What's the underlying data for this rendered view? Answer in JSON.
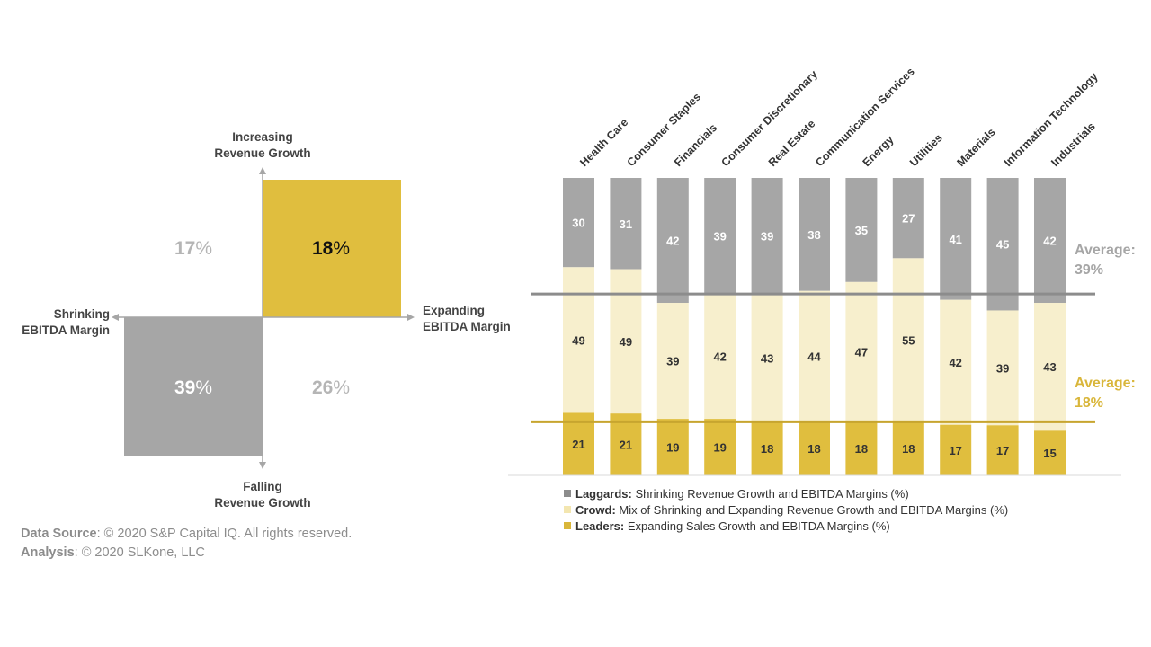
{
  "colors": {
    "laggards": "#a6a6a6",
    "crowd": "#f7efcd",
    "leaders": "#e0be3e",
    "avg_laggards_line": "#8c8c8c",
    "avg_leaders_line": "#c7a52f",
    "axis_grey": "#a6a6a6"
  },
  "quadrant": {
    "top_label_1": "Increasing",
    "top_label_2": "Revenue Growth",
    "bottom_label_1": "Falling",
    "bottom_label_2": "Revenue Growth",
    "left_label_1": "Shrinking",
    "left_label_2": "EBITDA Margin",
    "right_label_1": "Expanding",
    "right_label_2": "EBITDA Margin",
    "top_left_value": "17",
    "top_right_value": "18",
    "bottom_left_value": "39",
    "bottom_right_value": "26",
    "pct_sign": "%"
  },
  "averages": {
    "laggards_label": "Average:",
    "laggards_value": "39%",
    "leaders_label": "Average:",
    "leaders_value": "18%"
  },
  "legend": {
    "laggards_bold": "Laggards:",
    "laggards_text": " Shrinking Revenue Growth and EBITDA Margins (%)",
    "crowd_bold": "Crowd:",
    "crowd_text": " Mix of Shrinking and Expanding Revenue Growth and EBITDA Margins (%)",
    "leaders_bold": "Leaders:",
    "leaders_text": " Expanding Sales Growth and EBITDA Margins (%)"
  },
  "source": {
    "data_source_bold": "Data Source",
    "data_source_text": ": © 2020 S&P Capital IQ. All rights reserved.",
    "analysis_bold": "Analysis",
    "analysis_text": ": © 2020 SLKone, LLC"
  },
  "chart_data": [
    {
      "type": "quadrant",
      "cells": [
        {
          "quadrant": "Increasing Revenue Growth / Shrinking EBITDA Margin",
          "value": 17
        },
        {
          "quadrant": "Increasing Revenue Growth / Expanding EBITDA Margin",
          "value": 18
        },
        {
          "quadrant": "Falling Revenue Growth / Shrinking EBITDA Margin",
          "value": 39
        },
        {
          "quadrant": "Falling Revenue Growth / Expanding EBITDA Margin",
          "value": 26
        }
      ]
    },
    {
      "type": "bar",
      "stacked": true,
      "percent": true,
      "categories": [
        "Health Care",
        "Consumer Staples",
        "Financials",
        "Consumer Discretionary",
        "Real Estate",
        "Communication Services",
        "Energy",
        "Utilities",
        "Materials",
        "Information Technology",
        "Industrials"
      ],
      "series": [
        {
          "name": "Leaders",
          "values": [
            21,
            21,
            19,
            19,
            18,
            18,
            18,
            18,
            17,
            17,
            15
          ]
        },
        {
          "name": "Crowd",
          "values": [
            49,
            49,
            39,
            42,
            43,
            44,
            47,
            55,
            42,
            39,
            43
          ]
        },
        {
          "name": "Laggards",
          "values": [
            30,
            31,
            42,
            39,
            39,
            38,
            35,
            27,
            41,
            45,
            42
          ]
        }
      ],
      "reference_lines": [
        {
          "label": "Average: 39%",
          "value": 39,
          "measured_from": "top"
        },
        {
          "label": "Average: 18%",
          "value": 18,
          "measured_from": "bottom"
        }
      ],
      "ylim": [
        0,
        100
      ],
      "legend": "bottom-left"
    }
  ]
}
